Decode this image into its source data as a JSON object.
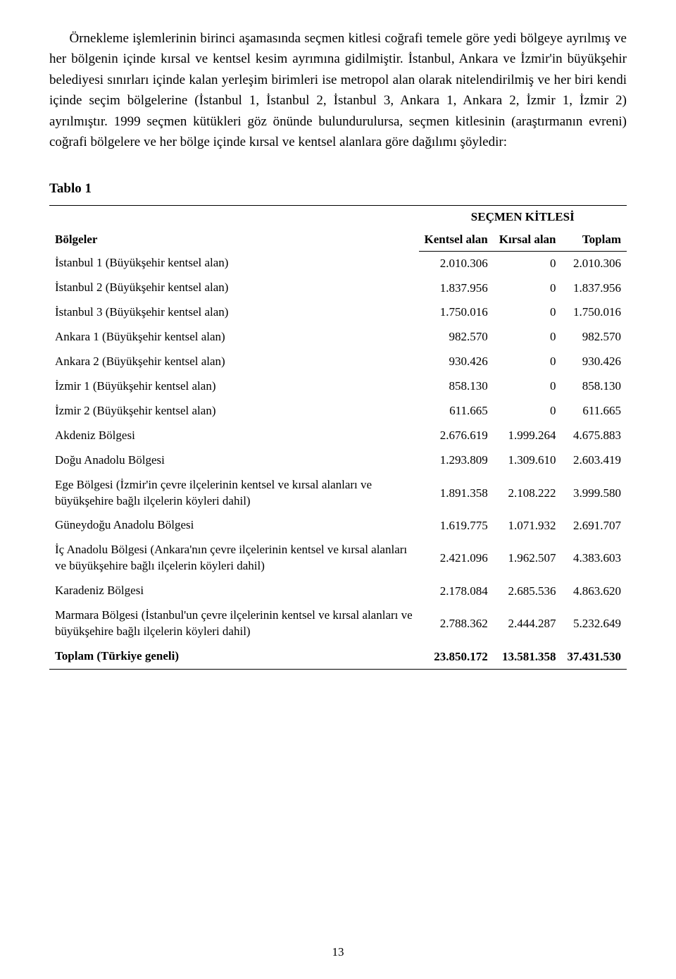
{
  "paragraph": "Örnekleme işlemlerinin birinci aşamasında seçmen kitlesi coğrafi temele göre yedi bölgeye ayrılmış ve her bölgenin içinde kırsal ve kentsel kesim ayrımına gidilmiştir. İstanbul, Ankara ve İzmir'in büyükşehir belediyesi sınırları içinde kalan yerleşim birimleri ise metropol alan olarak nitelendirilmiş ve her biri kendi içinde seçim bölgelerine (İstanbul 1, İstanbul 2, İstanbul 3, Ankara 1, Ankara 2, İzmir 1, İzmir 2) ayrılmıştır. 1999 seçmen kütükleri göz önünde bulundurulursa, seçmen kitlesinin (araştırmanın evreni) coğrafi bölgelere ve her bölge içinde kırsal ve kentsel alanlara göre dağılımı şöyledir:",
  "table_title": "Tablo 1",
  "table": {
    "region_header": "Bölgeler",
    "group_header": "SEÇMEN KİTLESİ",
    "columns": [
      "Kentsel alan",
      "Kırsal alan",
      "Toplam"
    ],
    "rows": [
      {
        "label": "İstanbul 1 (Büyükşehir kentsel alan)",
        "values": [
          "2.010.306",
          "0",
          "2.010.306"
        ]
      },
      {
        "label": "İstanbul 2 (Büyükşehir kentsel alan)",
        "values": [
          "1.837.956",
          "0",
          "1.837.956"
        ]
      },
      {
        "label": "İstanbul 3 (Büyükşehir kentsel alan)",
        "values": [
          "1.750.016",
          "0",
          "1.750.016"
        ]
      },
      {
        "label": "Ankara 1 (Büyükşehir kentsel alan)",
        "values": [
          "982.570",
          "0",
          "982.570"
        ]
      },
      {
        "label": "Ankara 2 (Büyükşehir kentsel alan)",
        "values": [
          "930.426",
          "0",
          "930.426"
        ]
      },
      {
        "label": "İzmir 1 (Büyükşehir kentsel alan)",
        "values": [
          "858.130",
          "0",
          "858.130"
        ]
      },
      {
        "label": "İzmir 2 (Büyükşehir kentsel alan)",
        "values": [
          "611.665",
          "0",
          "611.665"
        ]
      },
      {
        "label": "Akdeniz Bölgesi",
        "values": [
          "2.676.619",
          "1.999.264",
          "4.675.883"
        ]
      },
      {
        "label": "Doğu Anadolu Bölgesi",
        "values": [
          "1.293.809",
          "1.309.610",
          "2.603.419"
        ]
      },
      {
        "label": "Ege Bölgesi (İzmir'in çevre ilçelerinin kentsel ve kırsal alanları ve büyükşehire bağlı ilçelerin köyleri dahil)",
        "values": [
          "1.891.358",
          "2.108.222",
          "3.999.580"
        ]
      },
      {
        "label": "Güneydoğu Anadolu Bölgesi",
        "values": [
          "1.619.775",
          "1.071.932",
          "2.691.707"
        ]
      },
      {
        "label": "İç Anadolu Bölgesi (Ankara'nın çevre ilçelerinin kentsel ve kırsal alanları ve büyükşehire bağlı ilçelerin köyleri dahil)",
        "values": [
          "2.421.096",
          "1.962.507",
          "4.383.603"
        ]
      },
      {
        "label": "Karadeniz Bölgesi",
        "values": [
          "2.178.084",
          "2.685.536",
          "4.863.620"
        ]
      },
      {
        "label": "Marmara Bölgesi (İstanbul'un çevre ilçelerinin kentsel ve kırsal alanları ve büyükşehire bağlı ilçelerin köyleri dahil)",
        "values": [
          "2.788.362",
          "2.444.287",
          "5.232.649"
        ]
      }
    ],
    "total": {
      "label": "Toplam (Türkiye geneli)",
      "values": [
        "23.850.172",
        "13.581.358",
        "37.431.530"
      ]
    }
  },
  "page_number": "13"
}
